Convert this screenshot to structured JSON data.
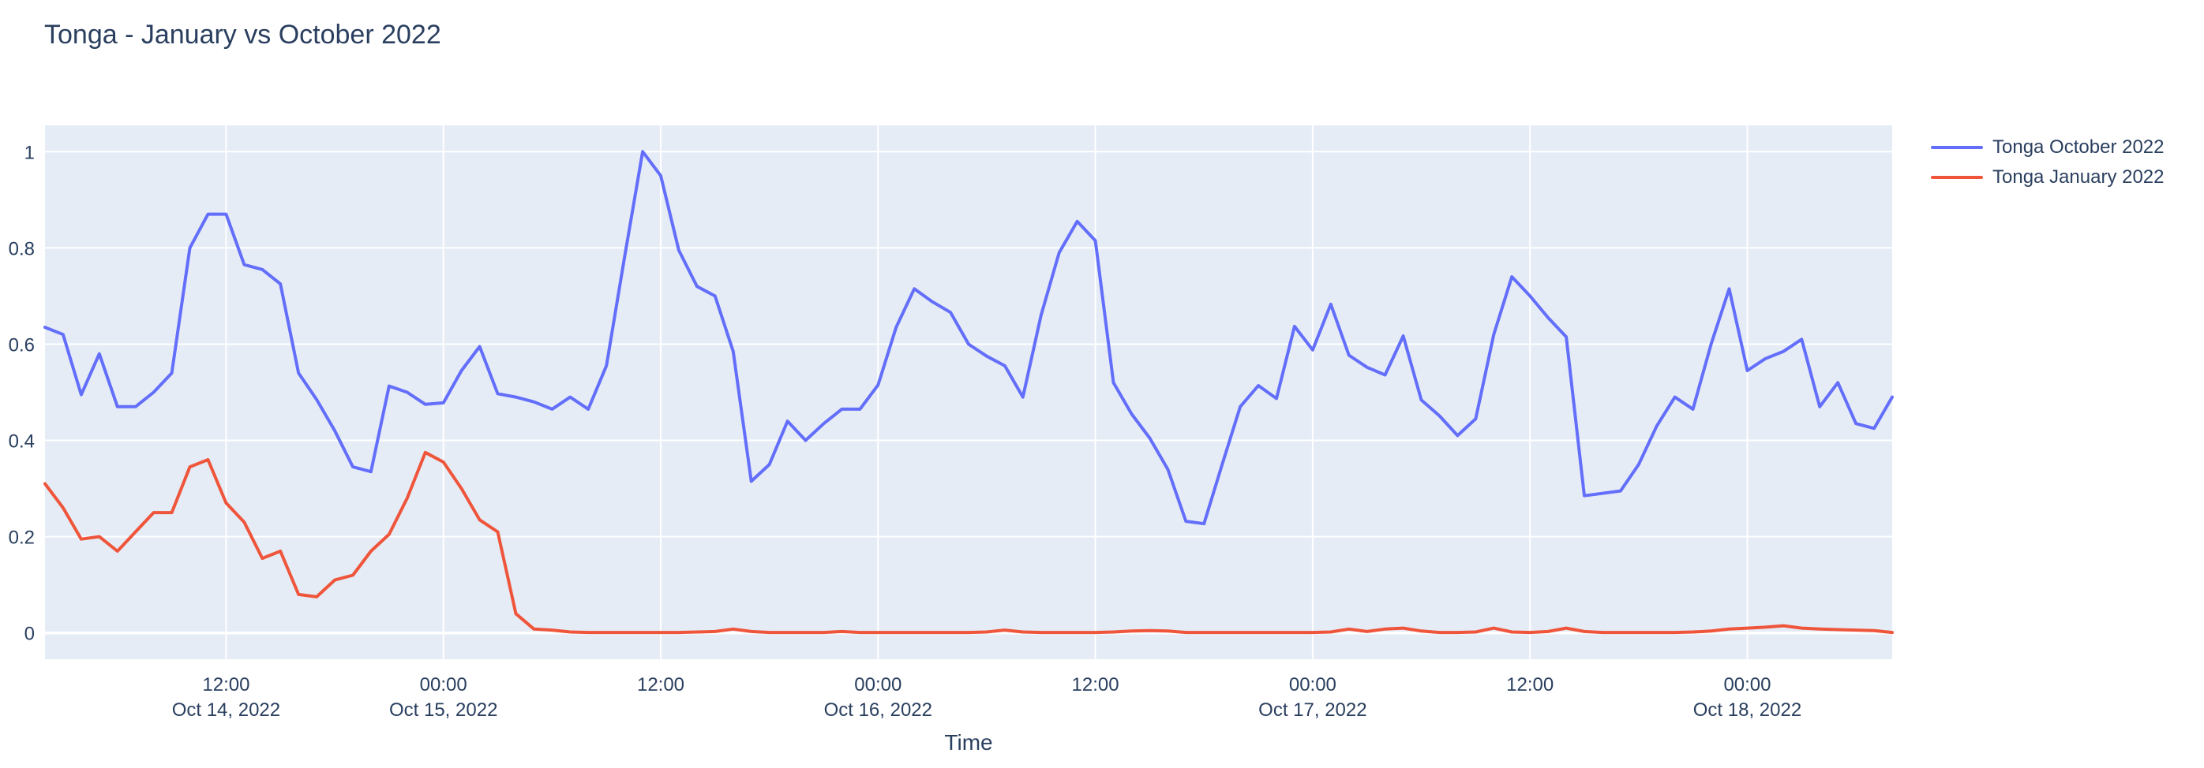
{
  "figure": {
    "title": "Tonga - January vs October 2022",
    "x_axis_title": "Time",
    "legend": [
      {
        "label": "Tonga October 2022",
        "color": "#636efa"
      },
      {
        "label": "Tonga January 2022",
        "color": "#ef553b"
      }
    ]
  },
  "colors": {
    "plot_background": "#e5ecf6",
    "gridline": "#ffffff",
    "text": "#2a3f5f",
    "series_october": "#636efa",
    "series_january": "#ef553b"
  },
  "chart_data": {
    "type": "line",
    "title": "Tonga - January vs October 2022",
    "xlabel": "Time",
    "ylabel": "",
    "x_start": "2022-10-14 02:00",
    "x_step_hours": 1,
    "x_end": "2022-10-18 08:00",
    "n_points": 103,
    "ylim": [
      -0.0545,
      1.0545
    ],
    "grid": true,
    "plot_bg": "#e5ecf6",
    "legend_position": "outside-top-right",
    "y_ticks": [
      0,
      0.2,
      0.4,
      0.6,
      0.8,
      1
    ],
    "y_tick_labels": [
      "0",
      "0.2",
      "0.4",
      "0.6",
      "0.8",
      "1"
    ],
    "x_ticks": [
      {
        "hour_offset": 10,
        "line1": "12:00",
        "line2": "Oct 14, 2022"
      },
      {
        "hour_offset": 22,
        "line1": "00:00",
        "line2": "Oct 15, 2022"
      },
      {
        "hour_offset": 34,
        "line1": "12:00",
        "line2": ""
      },
      {
        "hour_offset": 46,
        "line1": "00:00",
        "line2": "Oct 16, 2022"
      },
      {
        "hour_offset": 58,
        "line1": "12:00",
        "line2": ""
      },
      {
        "hour_offset": 70,
        "line1": "00:00",
        "line2": "Oct 17, 2022"
      },
      {
        "hour_offset": 82,
        "line1": "12:00",
        "line2": ""
      },
      {
        "hour_offset": 94,
        "line1": "00:00",
        "line2": "Oct 18, 2022"
      }
    ],
    "series": [
      {
        "name": "Tonga October 2022",
        "color": "#636efa",
        "values": [
          0.635,
          0.62,
          0.495,
          0.58,
          0.47,
          0.47,
          0.5,
          0.54,
          0.8,
          0.87,
          0.87,
          0.765,
          0.755,
          0.725,
          0.54,
          0.485,
          0.42,
          0.345,
          0.335,
          0.513,
          0.5,
          0.475,
          0.478,
          0.545,
          0.595,
          0.497,
          0.49,
          0.48,
          0.465,
          0.49,
          0.465,
          0.555,
          0.78,
          1.0,
          0.95,
          0.795,
          0.72,
          0.7,
          0.585,
          0.315,
          0.35,
          0.44,
          0.4,
          0.435,
          0.465,
          0.465,
          0.515,
          0.635,
          0.715,
          0.688,
          0.666,
          0.6,
          0.575,
          0.555,
          0.49,
          0.66,
          0.79,
          0.855,
          0.815,
          0.52,
          0.455,
          0.405,
          0.34,
          0.232,
          0.227,
          0.35,
          0.47,
          0.514,
          0.487,
          0.637,
          0.588,
          0.683,
          0.577,
          0.552,
          0.536,
          0.617,
          0.484,
          0.451,
          0.41,
          0.445,
          0.62,
          0.74,
          0.7,
          0.655,
          0.615,
          0.285,
          0.29,
          0.295,
          0.35,
          0.43,
          0.49,
          0.465,
          0.6,
          0.715,
          0.545,
          0.57,
          0.585,
          0.61,
          0.47,
          0.52,
          0.435,
          0.425,
          0.49
        ]
      },
      {
        "name": "Tonga January 2022",
        "color": "#ef553b",
        "values": [
          0.31,
          0.26,
          0.195,
          0.2,
          0.17,
          0.21,
          0.25,
          0.25,
          0.345,
          0.36,
          0.27,
          0.23,
          0.155,
          0.17,
          0.08,
          0.075,
          0.11,
          0.12,
          0.17,
          0.205,
          0.28,
          0.375,
          0.355,
          0.3,
          0.235,
          0.21,
          0.04,
          0.008,
          0.006,
          0.002,
          0.001,
          0.001,
          0.001,
          0.001,
          0.001,
          0.001,
          0.002,
          0.003,
          0.008,
          0.003,
          0.001,
          0.001,
          0.001,
          0.001,
          0.003,
          0.001,
          0.001,
          0.001,
          0.001,
          0.001,
          0.001,
          0.001,
          0.002,
          0.006,
          0.002,
          0.001,
          0.001,
          0.001,
          0.001,
          0.002,
          0.004,
          0.005,
          0.004,
          0.001,
          0.001,
          0.001,
          0.001,
          0.001,
          0.001,
          0.001,
          0.001,
          0.002,
          0.008,
          0.003,
          0.008,
          0.01,
          0.004,
          0.001,
          0.001,
          0.002,
          0.01,
          0.002,
          0.001,
          0.003,
          0.01,
          0.003,
          0.001,
          0.001,
          0.001,
          0.001,
          0.001,
          0.002,
          0.004,
          0.008,
          0.01,
          0.012,
          0.015,
          0.01,
          0.008,
          0.007,
          0.006,
          0.005,
          0.001
        ]
      }
    ]
  }
}
